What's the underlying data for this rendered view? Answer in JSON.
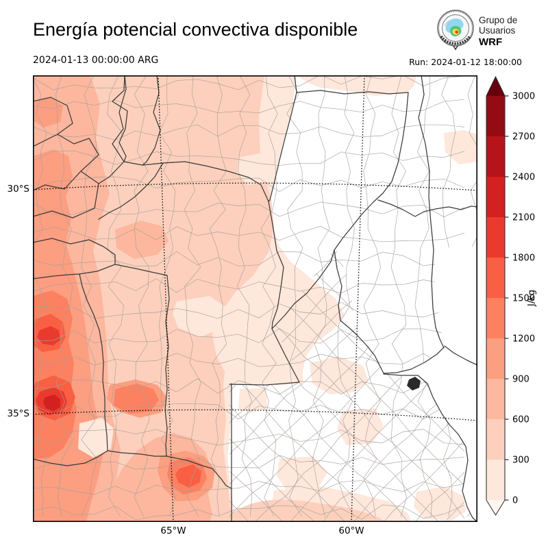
{
  "header": {
    "title": "Energía potencial convectiva disponible"
  },
  "logo": {
    "line1": "Grupo de",
    "line2": "Usuarios",
    "line3": "WRF"
  },
  "times": {
    "valid": "2024-01-13 00:00:00 ARG",
    "run": "Run: 2024-01-12 18:00:00"
  },
  "map": {
    "x_tick_labels": [
      "65°W",
      "60°W"
    ],
    "y_tick_labels": [
      "30°S",
      "35°S"
    ]
  },
  "colorbar": {
    "unit": "J/kg",
    "levels": [
      0,
      300,
      600,
      900,
      1200,
      1500,
      1800,
      2100,
      2400,
      2700,
      3000
    ],
    "segment_colors_bottom_to_top": [
      "#fee7db",
      "#fcd0bc",
      "#fcb79e",
      "#fc9e80",
      "#fc8161",
      "#f85f43",
      "#ea3a2e",
      "#d32020",
      "#b6131a",
      "#950b13"
    ],
    "over_color": "#67000d",
    "under_color": "#fff5f0"
  }
}
